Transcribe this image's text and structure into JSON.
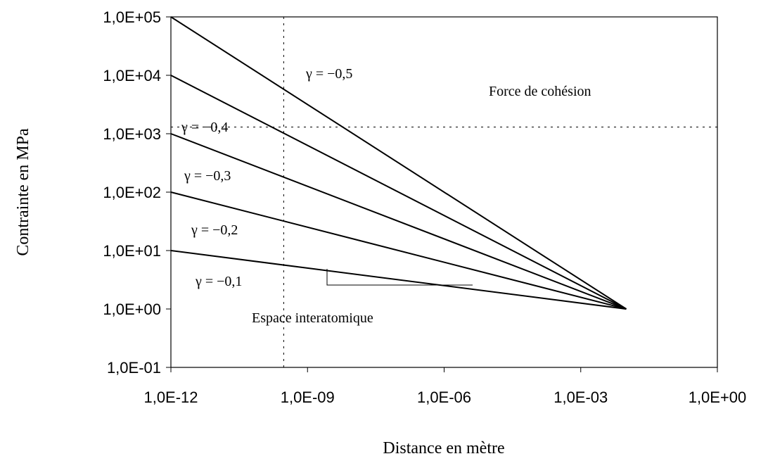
{
  "chart_data": {
    "type": "line",
    "x_label": "Distance en mètre",
    "y_label": "Contrainte en MPa",
    "log_x": true,
    "log_y": true,
    "color": "#000000",
    "x": [
      1e-12,
      0.01
    ],
    "series": [
      {
        "name": "γ = −0,5",
        "color": "#000000",
        "values": [
          100000,
          1
        ]
      },
      {
        "name": "γ = −0,4",
        "color": "#000000",
        "values": [
          10000,
          1
        ]
      },
      {
        "name": "γ = −0,3",
        "color": "#000000",
        "values": [
          1000,
          1
        ]
      },
      {
        "name": "γ = −0,2",
        "color": "#000000",
        "values": [
          100,
          1
        ]
      },
      {
        "name": "γ = −0,1",
        "color": "#000000",
        "values": [
          10,
          1
        ]
      }
    ],
    "xlim": [
      1e-12,
      1
    ],
    "ylim": [
      0.1,
      100000
    ],
    "xticks": [
      {
        "value": 1e-12,
        "label": "1,0E-12"
      },
      {
        "value": 1e-09,
        "label": "1,0E-09"
      },
      {
        "value": 1e-06,
        "label": "1,0E-06"
      },
      {
        "value": 0.001,
        "label": "1,0E-03"
      },
      {
        "value": 1,
        "label": "1,0E+00"
      }
    ],
    "yticks": [
      {
        "value": 0.1,
        "label": "1,0E-01"
      },
      {
        "value": 1,
        "label": "1,0E+00"
      },
      {
        "value": 10,
        "label": "1,0E+01"
      },
      {
        "value": 100,
        "label": "1,0E+02"
      },
      {
        "value": 1000,
        "label": "1,0E+03"
      },
      {
        "value": 10000,
        "label": "1,0E+04"
      },
      {
        "value": 100000,
        "label": "1,0E+05"
      }
    ],
    "x_reference": 3e-10,
    "y_reference": 1300,
    "annotations": [
      "Force de cohésion",
      "Espace interatomique"
    ]
  }
}
